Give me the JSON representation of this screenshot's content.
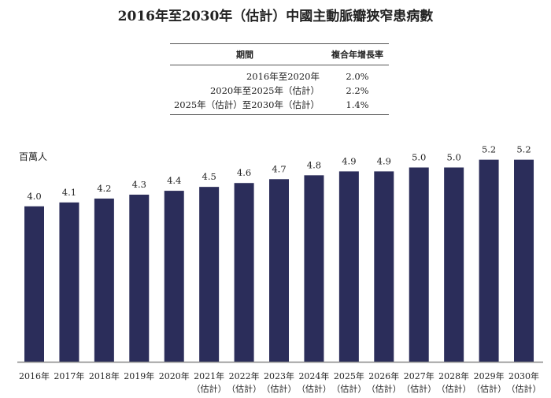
{
  "chart_data": {
    "type": "bar",
    "title": "2016年至2030年（估計）中國主動脈瓣狹窄患病數",
    "ylabel": "百萬人",
    "categories": [
      [
        "2016年",
        ""
      ],
      [
        "2017年",
        ""
      ],
      [
        "2018年",
        ""
      ],
      [
        "2019年",
        ""
      ],
      [
        "2020年",
        ""
      ],
      [
        "2021年",
        "（估計）"
      ],
      [
        "2022年",
        "（估計）"
      ],
      [
        "2023年",
        "（估計）"
      ],
      [
        "2024年",
        "（估計）"
      ],
      [
        "2025年",
        "（估計）"
      ],
      [
        "2026年",
        "（估計）"
      ],
      [
        "2027年",
        "（估計）"
      ],
      [
        "2028年",
        "（估計）"
      ],
      [
        "2029年",
        "（估計）"
      ],
      [
        "2030年",
        "（估計）"
      ]
    ],
    "values": [
      4.0,
      4.1,
      4.2,
      4.3,
      4.4,
      4.5,
      4.6,
      4.7,
      4.8,
      4.9,
      4.9,
      5.0,
      5.0,
      5.2,
      5.2
    ],
    "data_labels": [
      "4.0",
      "4.1",
      "4.2",
      "4.3",
      "4.4",
      "4.5",
      "4.6",
      "4.7",
      "4.8",
      "4.9",
      "4.9",
      "5.0",
      "5.0",
      "5.2",
      "5.2"
    ],
    "ylim": [
      0,
      6
    ],
    "grid": false,
    "bar_color": "#2b2d5a"
  },
  "cagr_table": {
    "headers": [
      "期間",
      "複合年增長率"
    ],
    "rows": [
      [
        "2016年至2020年",
        "2.0%"
      ],
      [
        "2020年至2025年（估計）",
        "2.2%"
      ],
      [
        "2025年（估計）至2030年（估計）",
        "1.4%"
      ]
    ]
  }
}
